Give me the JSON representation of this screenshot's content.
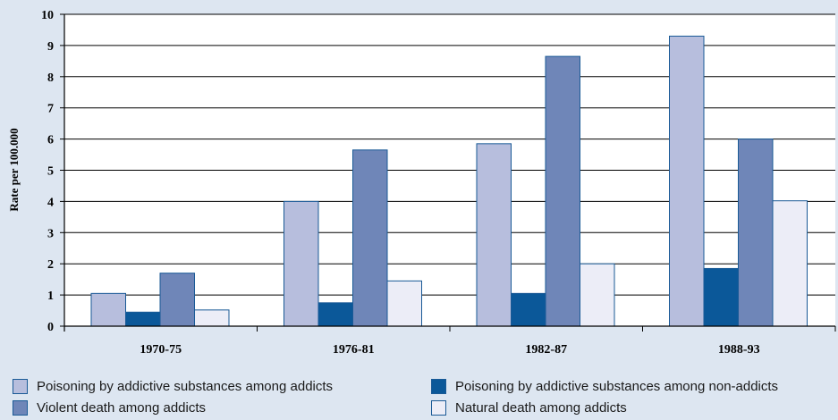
{
  "chart_data": {
    "type": "bar",
    "categories": [
      "1970-75",
      "1976-81",
      "1982-87",
      "1988-93"
    ],
    "ylabel": "Rate per 100.000",
    "ylim": [
      0,
      10
    ],
    "yticks": [
      "0",
      "1",
      "2",
      "3",
      "4",
      "5",
      "6",
      "7",
      "8",
      "9",
      "10"
    ],
    "grid": true,
    "legend_position": "bottom",
    "series": [
      {
        "name": "Poisoning by addictive substances among addicts",
        "color": "#b7bedd",
        "values": [
          1.05,
          4.0,
          5.85,
          9.3
        ]
      },
      {
        "name": "Poisoning by addictive substances among non-addicts",
        "color": "#0b5899",
        "values": [
          0.45,
          0.75,
          1.05,
          1.85
        ]
      },
      {
        "name": "Violent death among addicts",
        "color": "#6f86b8",
        "values": [
          1.7,
          5.65,
          8.65,
          6.0
        ]
      },
      {
        "name": "Natural death among addicts",
        "color": "#ecedf7",
        "values": [
          0.52,
          1.45,
          2.0,
          4.02
        ]
      }
    ]
  }
}
